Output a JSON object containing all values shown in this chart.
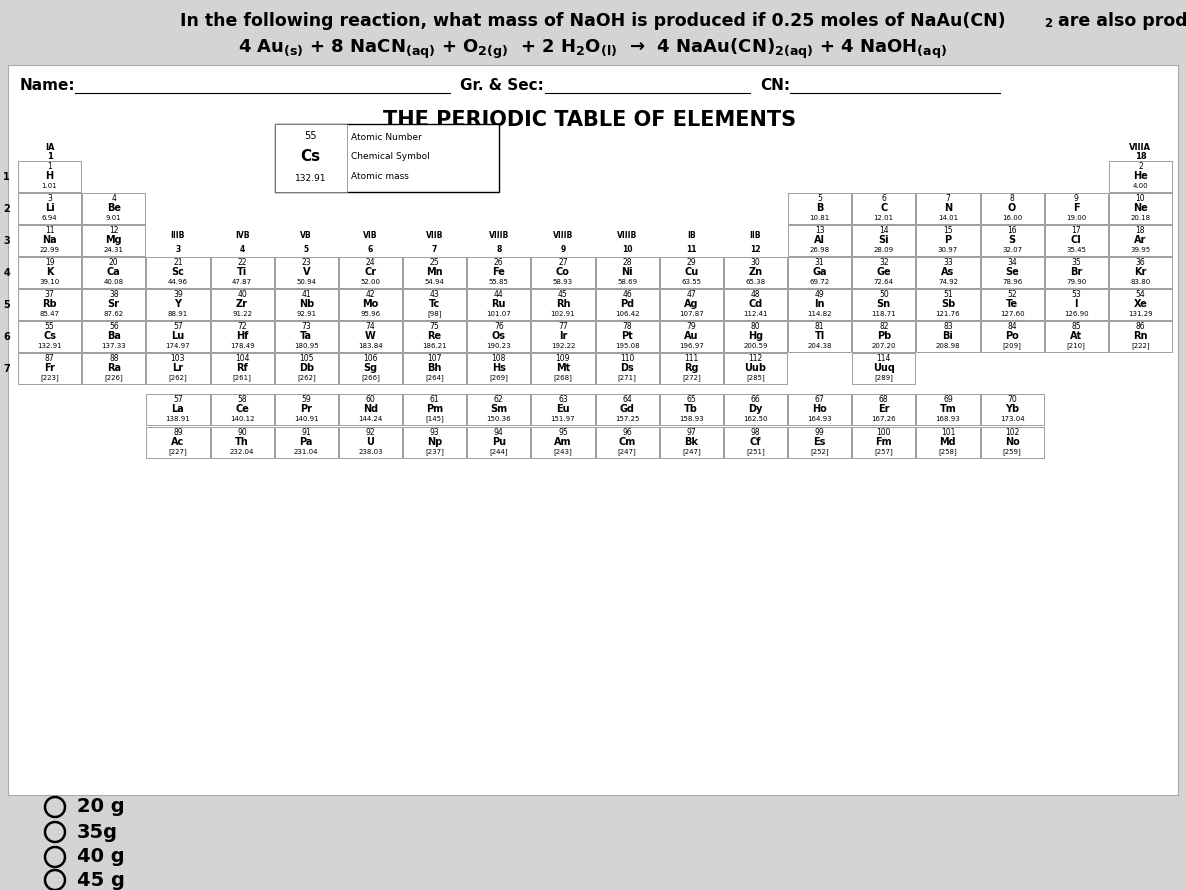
{
  "bg_color": "#d4d4d4",
  "table_bg": "#ffffff",
  "choices": [
    "20 g",
    "35g",
    "40 g",
    "45 g"
  ],
  "periodic_table_title": "THE PERIODIC TABLE OF ELEMENTS",
  "name_label": "Name:",
  "gr_sec_label": "Gr. & Sec:",
  "cn_label": "CN:",
  "row4": [
    [
      "19",
      "K",
      "39.10"
    ],
    [
      "20",
      "Ca",
      "40.08"
    ],
    [
      "21",
      "Sc",
      "44.96"
    ],
    [
      "22",
      "Ti",
      "47.87"
    ],
    [
      "23",
      "V",
      "50.94"
    ],
    [
      "24",
      "Cr",
      "52.00"
    ],
    [
      "25",
      "Mn",
      "54.94"
    ],
    [
      "26",
      "Fe",
      "55.85"
    ],
    [
      "27",
      "Co",
      "58.93"
    ],
    [
      "28",
      "Ni",
      "58.69"
    ],
    [
      "29",
      "Cu",
      "63.55"
    ],
    [
      "30",
      "Zn",
      "65.38"
    ],
    [
      "31",
      "Ga",
      "69.72"
    ],
    [
      "32",
      "Ge",
      "72.64"
    ],
    [
      "33",
      "As",
      "74.92"
    ],
    [
      "34",
      "Se",
      "78.96"
    ],
    [
      "35",
      "Br",
      "79.90"
    ],
    [
      "36",
      "Kr",
      "83.80"
    ]
  ],
  "row5": [
    [
      "37",
      "Rb",
      "85.47"
    ],
    [
      "38",
      "Sr",
      "87.62"
    ],
    [
      "39",
      "Y",
      "88.91"
    ],
    [
      "40",
      "Zr",
      "91.22"
    ],
    [
      "41",
      "Nb",
      "92.91"
    ],
    [
      "42",
      "Mo",
      "95.96"
    ],
    [
      "43",
      "Tc",
      "[98]"
    ],
    [
      "44",
      "Ru",
      "101.07"
    ],
    [
      "45",
      "Rh",
      "102.91"
    ],
    [
      "46",
      "Pd",
      "106.42"
    ],
    [
      "47",
      "Ag",
      "107.87"
    ],
    [
      "48",
      "Cd",
      "112.41"
    ],
    [
      "49",
      "In",
      "114.82"
    ],
    [
      "50",
      "Sn",
      "118.71"
    ],
    [
      "51",
      "Sb",
      "121.76"
    ],
    [
      "52",
      "Te",
      "127.60"
    ],
    [
      "53",
      "I",
      "126.90"
    ],
    [
      "54",
      "Xe",
      "131.29"
    ]
  ],
  "row6": [
    [
      "55",
      "Cs",
      "132.91"
    ],
    [
      "56",
      "Ba",
      "137.33"
    ],
    [
      "57",
      "Lu",
      "174.97"
    ],
    [
      "72",
      "Hf",
      "178.49"
    ],
    [
      "73",
      "Ta",
      "180.95"
    ],
    [
      "74",
      "W",
      "183.84"
    ],
    [
      "75",
      "Re",
      "186.21"
    ],
    [
      "76",
      "Os",
      "190.23"
    ],
    [
      "77",
      "Ir",
      "192.22"
    ],
    [
      "78",
      "Pt",
      "195.08"
    ],
    [
      "79",
      "Au",
      "196.97"
    ],
    [
      "80",
      "Hg",
      "200.59"
    ],
    [
      "81",
      "Tl",
      "204.38"
    ],
    [
      "82",
      "Pb",
      "207.20"
    ],
    [
      "83",
      "Bi",
      "208.98"
    ],
    [
      "84",
      "Po",
      "[209]"
    ],
    [
      "85",
      "At",
      "[210]"
    ],
    [
      "86",
      "Rn",
      "[222]"
    ]
  ],
  "row7": [
    [
      "87",
      "Fr",
      "[223]"
    ],
    [
      "88",
      "Ra",
      "[226]"
    ],
    [
      "103",
      "Lr",
      "[262]"
    ],
    [
      "104",
      "Rf",
      "[261]"
    ],
    [
      "105",
      "Db",
      "[262]"
    ],
    [
      "106",
      "Sg",
      "[266]"
    ],
    [
      "107",
      "Bh",
      "[264]"
    ],
    [
      "108",
      "Hs",
      "[269]"
    ],
    [
      "109",
      "Mt",
      "[268]"
    ],
    [
      "110",
      "Ds",
      "[271]"
    ],
    [
      "111",
      "Rg",
      "[272]"
    ],
    [
      "112",
      "Uub",
      "[285]"
    ],
    [
      "",
      "",
      ""
    ],
    [
      "114",
      "Uuq",
      "[289]"
    ],
    [
      "",
      "",
      ""
    ],
    [
      "",
      "",
      ""
    ],
    [
      "",
      "",
      ""
    ],
    [
      "",
      "",
      ""
    ]
  ],
  "lant1": [
    [
      "57",
      "La",
      "138.91"
    ],
    [
      "58",
      "Ce",
      "140.12"
    ],
    [
      "59",
      "Pr",
      "140.91"
    ],
    [
      "60",
      "Nd",
      "144.24"
    ],
    [
      "61",
      "Pm",
      "[145]"
    ],
    [
      "62",
      "Sm",
      "150.36"
    ],
    [
      "63",
      "Eu",
      "151.97"
    ],
    [
      "64",
      "Gd",
      "157.25"
    ],
    [
      "65",
      "Tb",
      "158.93"
    ],
    [
      "66",
      "Dy",
      "162.50"
    ],
    [
      "67",
      "Ho",
      "164.93"
    ],
    [
      "68",
      "Er",
      "167.26"
    ],
    [
      "69",
      "Tm",
      "168.93"
    ],
    [
      "70",
      "Yb",
      "173.04"
    ]
  ],
  "lant2": [
    [
      "89",
      "Ac",
      "[227]"
    ],
    [
      "90",
      "Th",
      "232.04"
    ],
    [
      "91",
      "Pa",
      "231.04"
    ],
    [
      "92",
      "U",
      "238.03"
    ],
    [
      "93",
      "Np",
      "[237]"
    ],
    [
      "94",
      "Pu",
      "[244]"
    ],
    [
      "95",
      "Am",
      "[243]"
    ],
    [
      "96",
      "Cm",
      "[247]"
    ],
    [
      "97",
      "Bk",
      "[247]"
    ],
    [
      "98",
      "Cf",
      "[251]"
    ],
    [
      "99",
      "Es",
      "[252]"
    ],
    [
      "100",
      "Fm",
      "[257]"
    ],
    [
      "101",
      "Md",
      "[258]"
    ],
    [
      "102",
      "No",
      "[259]"
    ]
  ]
}
